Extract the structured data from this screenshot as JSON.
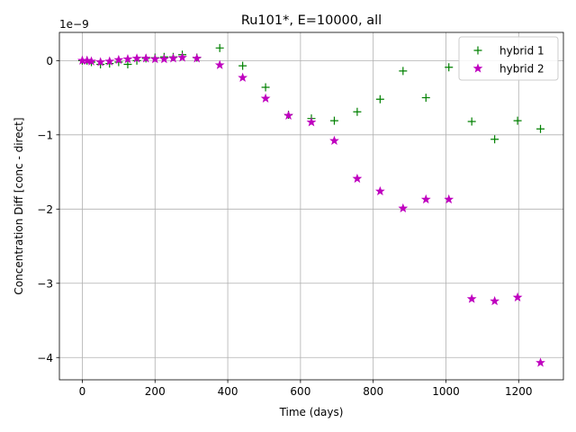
{
  "chart_data": {
    "type": "scatter",
    "title": "Ru101*, E=10000, all",
    "xlabel": "Time (days)",
    "ylabel": "Concentration Diff [conc - direct]",
    "y_multiplier_label": "1e−9",
    "xlim": [
      -63,
      1323
    ],
    "ylim": [
      -4.3,
      0.38
    ],
    "xticks": [
      0,
      200,
      400,
      600,
      800,
      1000,
      1200
    ],
    "yticks": [
      0,
      -1,
      -2,
      -3,
      -4
    ],
    "grid": true,
    "legend_position": "top-right",
    "series": [
      {
        "name": "hybrid 1",
        "marker": "plus",
        "color": "#008000",
        "x": [
          0,
          13,
          25,
          50,
          75,
          100,
          125,
          150,
          175,
          200,
          225,
          250,
          275,
          315,
          378,
          441,
          504,
          567,
          630,
          693,
          756,
          819,
          882,
          945,
          1008,
          1071,
          1134,
          1197,
          1260
        ],
        "y": [
          0.0,
          0.0,
          -0.02,
          -0.05,
          -0.04,
          -0.02,
          -0.05,
          0.0,
          0.03,
          0.04,
          0.05,
          0.05,
          0.08,
          0.04,
          0.17,
          -0.07,
          -0.36,
          -0.73,
          -0.78,
          -0.81,
          -0.69,
          -0.52,
          -0.14,
          -0.5,
          -0.09,
          -0.82,
          -1.06,
          -0.81,
          -0.92
        ]
      },
      {
        "name": "hybrid 2",
        "marker": "star",
        "color": "#bf00bf",
        "x": [
          0,
          13,
          25,
          50,
          75,
          100,
          125,
          150,
          175,
          200,
          225,
          250,
          275,
          315,
          378,
          441,
          504,
          567,
          630,
          693,
          756,
          819,
          882,
          945,
          1008,
          1071,
          1134,
          1197,
          1260
        ],
        "y": [
          0.0,
          0.0,
          -0.01,
          -0.02,
          -0.01,
          0.01,
          0.02,
          0.03,
          0.03,
          0.02,
          0.02,
          0.03,
          0.04,
          0.03,
          -0.06,
          -0.23,
          -0.51,
          -0.74,
          -0.83,
          -1.08,
          -1.59,
          -1.76,
          -1.99,
          -1.87,
          -1.87,
          -3.21,
          -3.24,
          -3.19,
          -4.07
        ]
      }
    ]
  }
}
